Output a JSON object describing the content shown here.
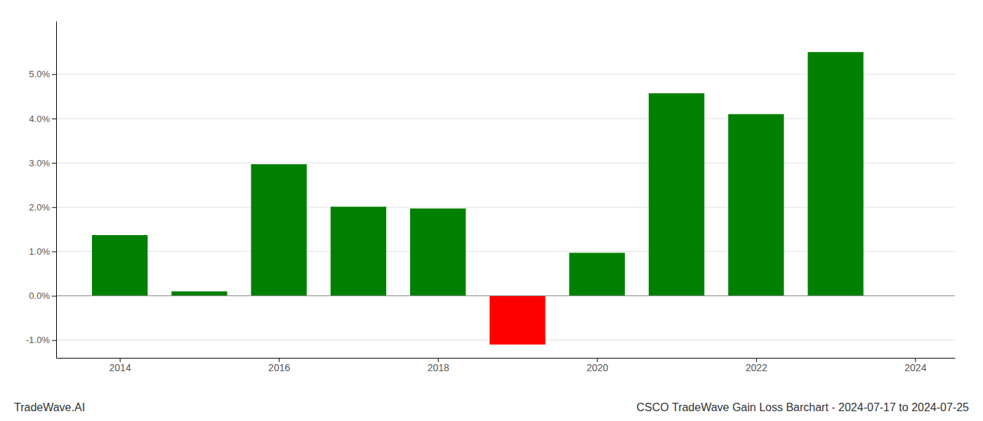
{
  "chart_data": {
    "type": "bar",
    "x": [
      2014,
      2015,
      2016,
      2017,
      2018,
      2019,
      2020,
      2021,
      2022,
      2023
    ],
    "values": [
      1.37,
      0.1,
      2.97,
      2.01,
      1.97,
      -1.1,
      0.97,
      4.57,
      4.1,
      5.5
    ],
    "colors": [
      "#008000",
      "#008000",
      "#008000",
      "#008000",
      "#008000",
      "#ff0000",
      "#008000",
      "#008000",
      "#008000",
      "#008000"
    ],
    "xlim": [
      2013.2,
      2024.5
    ],
    "xticks": [
      2014,
      2016,
      2018,
      2020,
      2022,
      2024
    ],
    "ylim": [
      -1.4,
      6.2
    ],
    "yticks": [
      {
        "value": -1.0,
        "label": "-1.0%"
      },
      {
        "value": 0.0,
        "label": "0.0%"
      },
      {
        "value": 1.0,
        "label": "1.0%"
      },
      {
        "value": 2.0,
        "label": "2.0%"
      },
      {
        "value": 3.0,
        "label": "3.0%"
      },
      {
        "value": 4.0,
        "label": "4.0%"
      },
      {
        "value": 5.0,
        "label": "5.0%"
      }
    ],
    "grid": true,
    "annotations": [
      "TradeWave.AI",
      "CSCO TradeWave Gain Loss Barchart - 2024-07-17 to 2024-07-25"
    ]
  }
}
